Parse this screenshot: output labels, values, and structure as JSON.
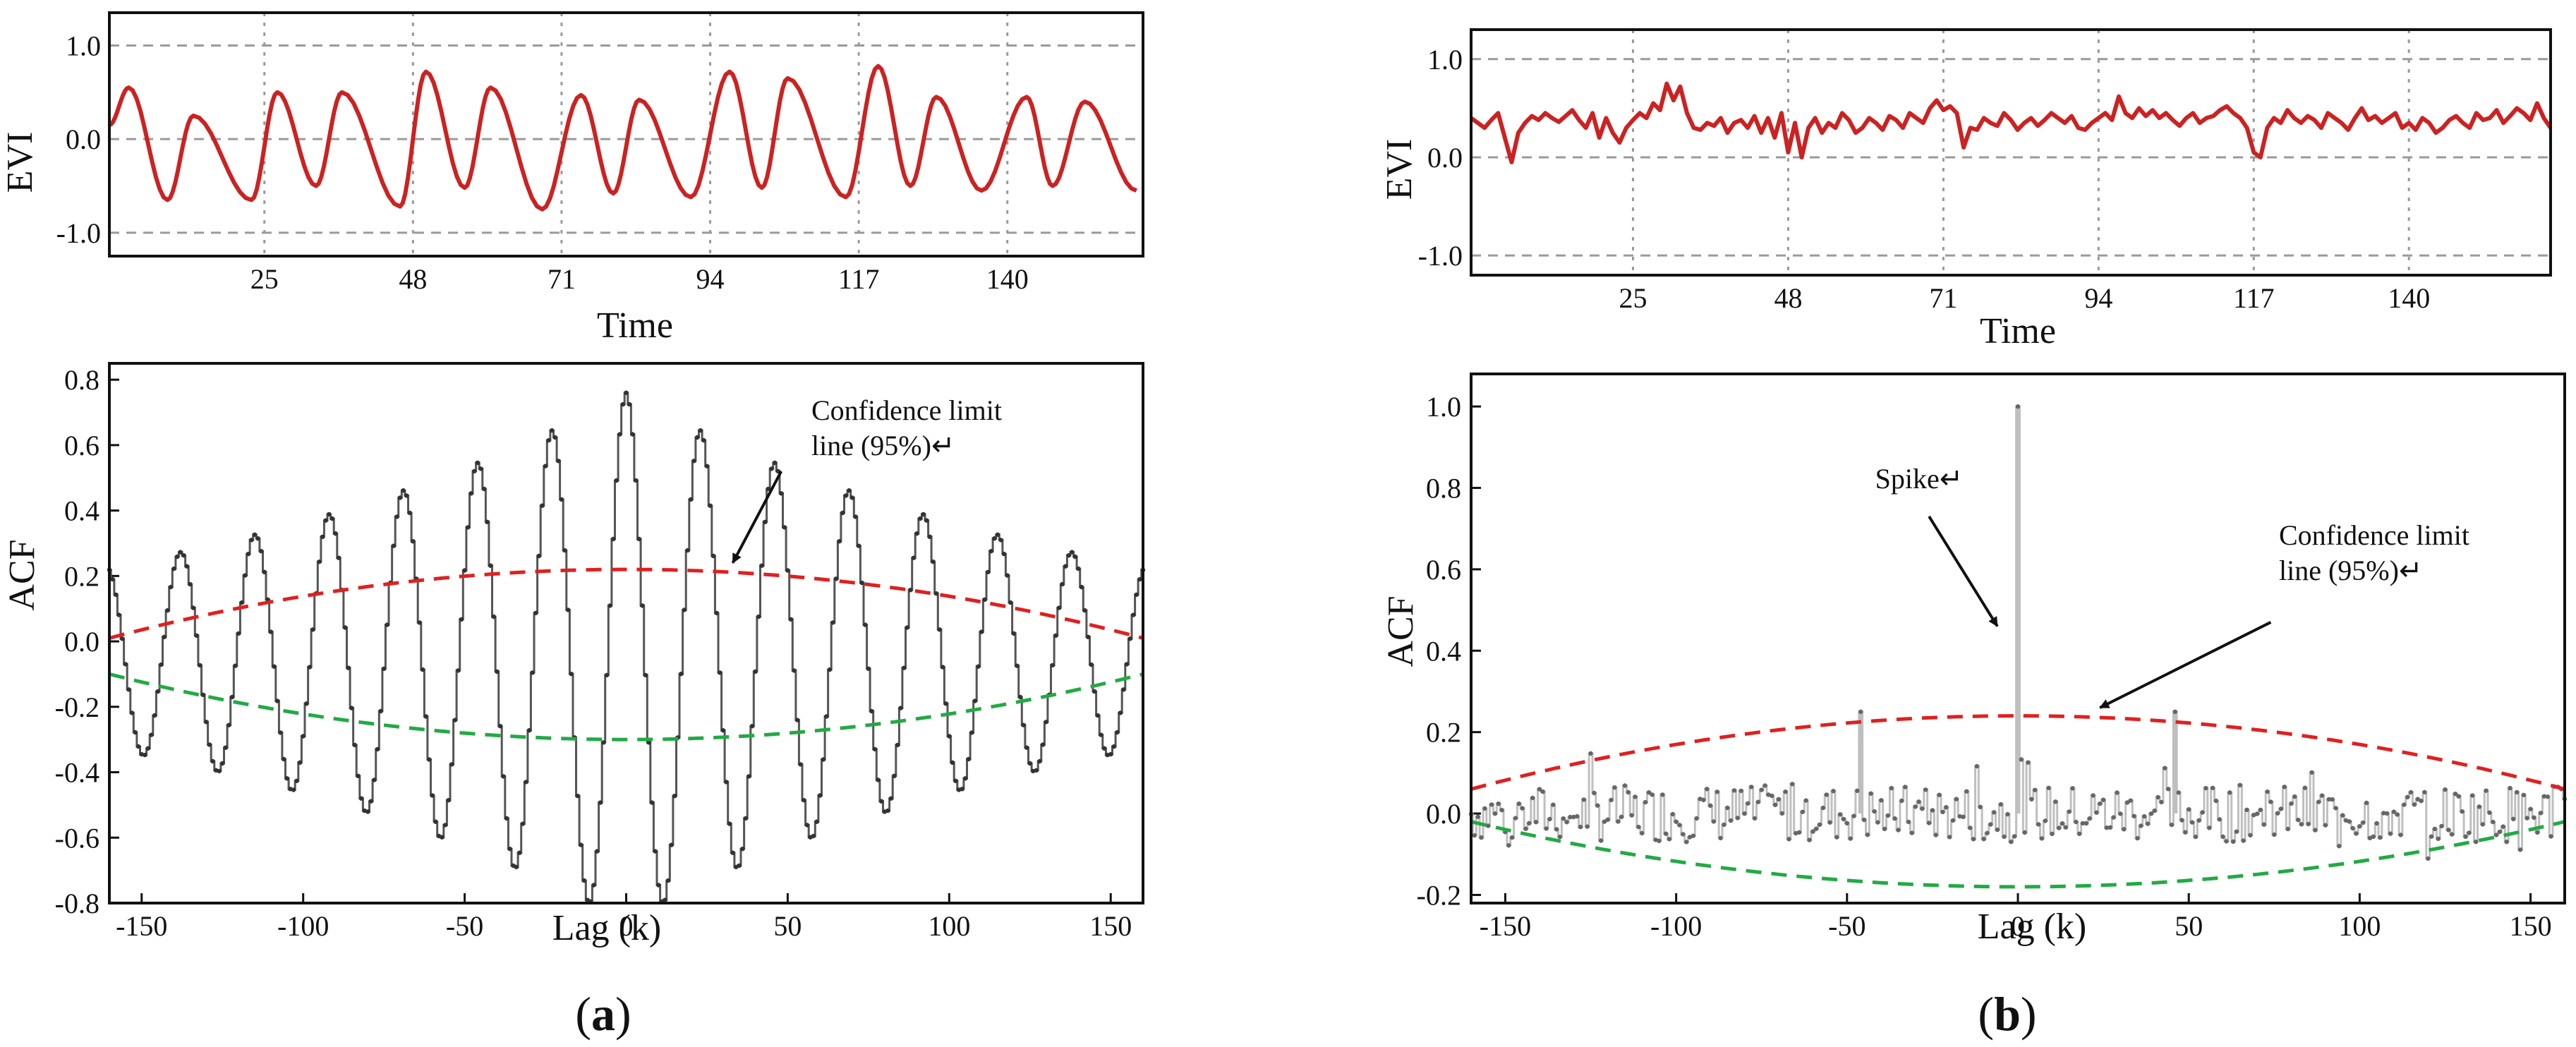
{
  "colors": {
    "evi_line": "#cc2222",
    "acf_line": "#555555",
    "acf_marker": "#333333",
    "acf_bar": "#bfbfbf",
    "upper_limit": "#e02020",
    "lower_limit": "#22aa44",
    "grid": "#9a9a9a",
    "frame": "#111111"
  },
  "panels": [
    {
      "label_open": "(",
      "label_letter": "a",
      "label_close": ")",
      "evi": {
        "ylabel": "EVI",
        "xlabel": "Time",
        "xlim": [
          1,
          161
        ],
        "ylim": [
          -1.25,
          1.35
        ],
        "yticks": [
          1.0,
          0.0,
          -1.0
        ],
        "ytick_labels": [
          "1.0",
          "0.0",
          "-1.0"
        ],
        "xticks": [
          25,
          48,
          71,
          94,
          117,
          140
        ],
        "xtick_labels": [
          "25",
          "48",
          "71",
          "94",
          "117",
          "140"
        ],
        "peaks": [
          {
            "at": 4,
            "value": 0.55
          },
          {
            "at": 14,
            "value": 0.25
          },
          {
            "at": 27,
            "value": 0.5
          },
          {
            "at": 37,
            "value": 0.5
          },
          {
            "at": 50,
            "value": 0.72
          },
          {
            "at": 60,
            "value": 0.55
          },
          {
            "at": 74,
            "value": 0.47
          },
          {
            "at": 83,
            "value": 0.42
          },
          {
            "at": 97,
            "value": 0.72
          },
          {
            "at": 106,
            "value": 0.65
          },
          {
            "at": 120,
            "value": 0.78
          },
          {
            "at": 129,
            "value": 0.45
          },
          {
            "at": 143,
            "value": 0.45
          },
          {
            "at": 152,
            "value": 0.4
          }
        ],
        "troughs": [
          {
            "at": 10,
            "value": -0.65
          },
          {
            "at": 23,
            "value": -0.65
          },
          {
            "at": 33,
            "value": -0.5
          },
          {
            "at": 46,
            "value": -0.72
          },
          {
            "at": 56,
            "value": -0.52
          },
          {
            "at": 68,
            "value": -0.75
          },
          {
            "at": 79,
            "value": -0.58
          },
          {
            "at": 91,
            "value": -0.62
          },
          {
            "at": 102,
            "value": -0.52
          },
          {
            "at": 115,
            "value": -0.62
          },
          {
            "at": 125,
            "value": -0.5
          },
          {
            "at": 136,
            "value": -0.55
          },
          {
            "at": 147,
            "value": -0.5
          },
          {
            "at": 160,
            "value": -0.55
          }
        ]
      },
      "acf": {
        "ylabel": "ACF",
        "xlabel": "Lag (k)",
        "xlim": [
          -160,
          160
        ],
        "ylim": [
          -0.8,
          0.85
        ],
        "yticks": [
          0.8,
          0.6,
          0.4,
          0.2,
          0.0,
          -0.2,
          -0.4,
          -0.6,
          -0.8
        ],
        "ytick_labels": [
          "0.8",
          "0.6",
          "0.4",
          "0.2",
          "0.0",
          "-0.2",
          "-0.4",
          "-0.6",
          "-0.8"
        ],
        "xticks": [
          -150,
          -100,
          -50,
          0,
          50,
          100,
          150
        ],
        "xtick_labels": [
          "-150",
          "-100",
          "-50",
          "0",
          "50",
          "100",
          "150"
        ],
        "acf_model": {
          "period": 23,
          "center_value": 0.76,
          "envelope_decay": 150,
          "baseline": -0.05
        },
        "confidence_upper": {
          "center": 0.22,
          "edge": 0.01
        },
        "confidence_lower": {
          "center": -0.3,
          "edge": -0.1
        },
        "annotation_line1": "Confidence limit",
        "annotation_line2": "line (95%)↵",
        "arrow_tip": {
          "lag": 33,
          "acf": 0.24
        },
        "arrow_tail": {
          "lag": 48,
          "acf": 0.52
        }
      }
    },
    {
      "label_open": "(",
      "label_letter": "b",
      "label_close": ")",
      "evi": {
        "ylabel": "EVI",
        "xlabel": "Time",
        "xlim": [
          1,
          161
        ],
        "ylim": [
          -1.2,
          1.3
        ],
        "yticks": [
          1.0,
          0.0,
          -1.0
        ],
        "ytick_labels": [
          "1.0",
          "0.0",
          "-1.0"
        ],
        "xticks": [
          25,
          48,
          71,
          94,
          117,
          140
        ],
        "xtick_labels": [
          "25",
          "48",
          "71",
          "94",
          "117",
          "140"
        ],
        "series": [
          0.4,
          0.35,
          0.3,
          0.38,
          0.45,
          0.2,
          -0.05,
          0.25,
          0.35,
          0.42,
          0.38,
          0.45,
          0.4,
          0.36,
          0.42,
          0.48,
          0.38,
          0.3,
          0.45,
          0.2,
          0.4,
          0.25,
          0.15,
          0.3,
          0.38,
          0.45,
          0.4,
          0.55,
          0.48,
          0.75,
          0.58,
          0.72,
          0.45,
          0.3,
          0.28,
          0.35,
          0.32,
          0.4,
          0.25,
          0.35,
          0.38,
          0.3,
          0.42,
          0.25,
          0.4,
          0.2,
          0.45,
          0.05,
          0.35,
          0.0,
          0.3,
          0.4,
          0.25,
          0.35,
          0.3,
          0.45,
          0.38,
          0.25,
          0.3,
          0.4,
          0.35,
          0.28,
          0.42,
          0.38,
          0.3,
          0.45,
          0.4,
          0.35,
          0.5,
          0.58,
          0.48,
          0.52,
          0.45,
          0.1,
          0.3,
          0.28,
          0.4,
          0.35,
          0.32,
          0.45,
          0.38,
          0.28,
          0.35,
          0.4,
          0.32,
          0.38,
          0.45,
          0.4,
          0.35,
          0.42,
          0.3,
          0.28,
          0.35,
          0.4,
          0.45,
          0.38,
          0.62,
          0.45,
          0.4,
          0.5,
          0.42,
          0.48,
          0.4,
          0.45,
          0.38,
          0.32,
          0.4,
          0.45,
          0.35,
          0.4,
          0.42,
          0.48,
          0.52,
          0.45,
          0.4,
          0.3,
          0.05,
          0.0,
          0.3,
          0.4,
          0.35,
          0.48,
          0.4,
          0.35,
          0.42,
          0.38,
          0.3,
          0.45,
          0.4,
          0.35,
          0.28,
          0.4,
          0.5,
          0.38,
          0.42,
          0.35,
          0.4,
          0.45,
          0.3,
          0.35,
          0.28,
          0.4,
          0.35,
          0.25,
          0.3,
          0.38,
          0.42,
          0.35,
          0.3,
          0.45,
          0.38,
          0.4,
          0.48,
          0.35,
          0.42,
          0.5,
          0.45,
          0.38,
          0.55,
          0.4,
          0.3
        ],
        "series_start": 1
      },
      "acf": {
        "ylabel": "ACF",
        "xlabel": "Lag (k)",
        "xlim": [
          -160,
          160
        ],
        "ylim": [
          -0.22,
          1.08
        ],
        "yticks": [
          1.0,
          0.8,
          0.6,
          0.4,
          0.2,
          0.0,
          -0.2
        ],
        "ytick_labels": [
          "1.0",
          "0.8",
          "0.6",
          "0.4",
          "0.2",
          "0.0",
          "-0.2"
        ],
        "xticks": [
          -150,
          -100,
          -50,
          0,
          50,
          100,
          150
        ],
        "xtick_labels": [
          "-150",
          "-100",
          "-50",
          "0",
          "50",
          "100",
          "150"
        ],
        "spikes": [
          {
            "lag": 0,
            "acf": 1.0
          },
          {
            "lag": -46,
            "acf": 0.25
          },
          {
            "lag": 46,
            "acf": 0.25
          }
        ],
        "noise_amplitude": 0.07,
        "confidence_upper": {
          "center": 0.24,
          "edge": 0.06
        },
        "confidence_lower": {
          "center": -0.18,
          "edge": -0.02
        },
        "spike_label": "Spike↵",
        "spike_arrow_tip": {
          "lag": -6,
          "acf": 0.46
        },
        "spike_arrow_tail": {
          "lag": -26,
          "acf": 0.73
        },
        "annotation_line1": "Confidence limit",
        "annotation_line2": "line (95%)↵",
        "arrow_tip": {
          "lag": 24,
          "acf": 0.26
        },
        "arrow_tail": {
          "lag": 74,
          "acf": 0.47
        }
      }
    }
  ]
}
